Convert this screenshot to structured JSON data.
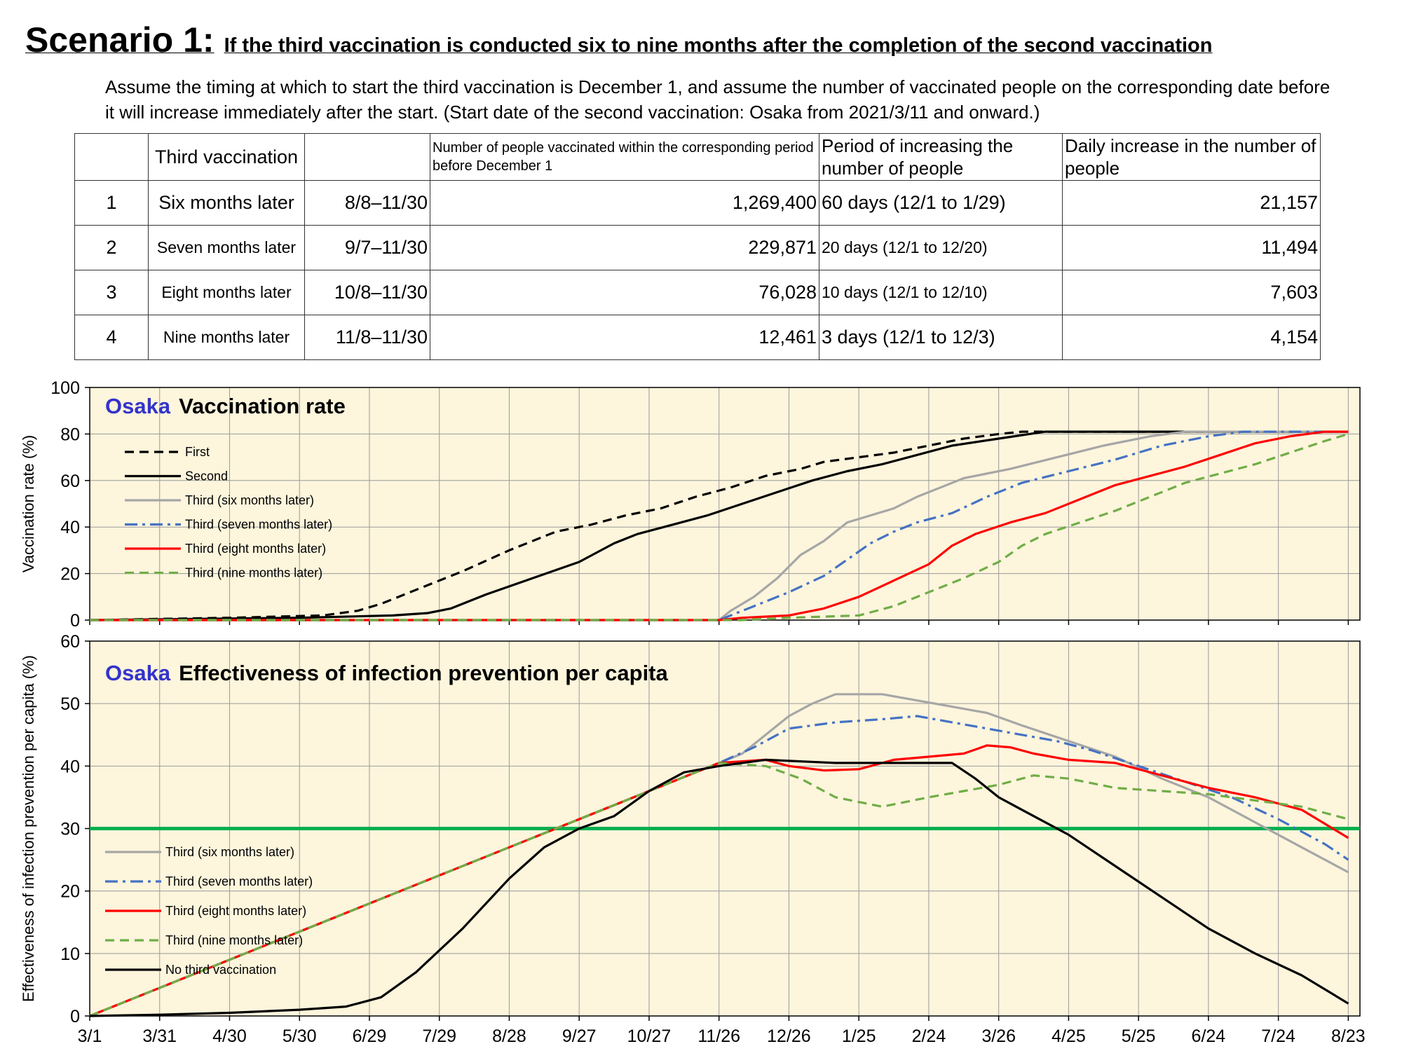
{
  "heading": {
    "scenario": "Scenario 1:",
    "subtitle": "If the third vaccination is conducted six to nine months after the completion of the second vaccination"
  },
  "intro": "Assume the timing at which to start the third vaccination is December 1, and assume the number of vaccinated people on the corresponding date before it will increase immediately after the start. (Start date of the second vaccination: Osaka from 2021/3/11 and onward.)",
  "table": {
    "headers": [
      "",
      "Third vaccination",
      "",
      "Number of people vaccinated within the corresponding period before December 1",
      "Period of increasing the number of people",
      "Daily increase in the number of people"
    ],
    "rows": [
      {
        "idx": "1",
        "third": "Six months later",
        "period": "8/8–11/30",
        "number": "1,269,400",
        "increase": "60 days (12/1 to 1/29)",
        "daily": "21,157"
      },
      {
        "idx": "2",
        "third": "Seven months later",
        "period": "9/7–11/30",
        "number": "229,871",
        "increase": "20 days (12/1 to 12/20)",
        "daily": "11,494"
      },
      {
        "idx": "3",
        "third": "Eight months later",
        "period": "10/8–11/30",
        "number": "76,028",
        "increase": "10 days (12/1 to 12/10)",
        "daily": "7,603"
      },
      {
        "idx": "4",
        "third": "Nine months later",
        "period": "11/8–11/30",
        "number": "12,461",
        "increase": "3 days (12/1 to 12/3)",
        "daily": "4,154"
      }
    ]
  },
  "colors": {
    "plot_bg": "#fdf5dc",
    "grid": "#9a9a9a",
    "first": "#000000",
    "second": "#000000",
    "six": "#a6a6a6",
    "seven": "#4472c4",
    "eight": "#ff0000",
    "nine": "#70ad47",
    "threshold": "#00b050",
    "region": "#3333cc"
  },
  "chart_data": [
    {
      "type": "line",
      "region": "Osaka",
      "title": "Vaccination rate",
      "ylabel": "Vaccination rate (%)",
      "ylim": [
        0,
        100
      ],
      "yticks": [
        0,
        20,
        40,
        60,
        80,
        100
      ],
      "xticks": [
        "3/1",
        "3/31",
        "4/30",
        "5/30",
        "6/29",
        "7/29",
        "8/28",
        "9/27",
        "10/27",
        "11/26",
        "12/26",
        "1/25",
        "2/24",
        "3/26",
        "4/25",
        "5/25",
        "6/24",
        "7/24",
        "8/23"
      ],
      "grid": true,
      "legend_position": "top-left",
      "series": [
        {
          "name": "First",
          "style": "dashed",
          "color": "#000000",
          "points": [
            [
              0,
              0
            ],
            [
              60,
              1
            ],
            [
              100,
              2
            ],
            [
              115,
              4
            ],
            [
              125,
              7
            ],
            [
              140,
              13
            ],
            [
              160,
              21
            ],
            [
              180,
              30
            ],
            [
              200,
              38
            ],
            [
              215,
              41
            ],
            [
              230,
              45
            ],
            [
              245,
              48
            ],
            [
              260,
              53
            ],
            [
              275,
              57
            ],
            [
              290,
              62
            ],
            [
              305,
              65
            ],
            [
              315,
              68
            ],
            [
              330,
              70
            ],
            [
              345,
              72
            ],
            [
              360,
              75
            ],
            [
              375,
              78
            ],
            [
              390,
              80
            ],
            [
              400,
              81
            ],
            [
              420,
              81
            ],
            [
              540,
              81
            ]
          ]
        },
        {
          "name": "Second",
          "style": "solid",
          "color": "#000000",
          "points": [
            [
              0,
              0
            ],
            [
              90,
              1
            ],
            [
              130,
              2
            ],
            [
              145,
              3
            ],
            [
              155,
              5
            ],
            [
              170,
              11
            ],
            [
              190,
              18
            ],
            [
              210,
              25
            ],
            [
              225,
              33
            ],
            [
              235,
              37
            ],
            [
              250,
              41
            ],
            [
              265,
              45
            ],
            [
              280,
              50
            ],
            [
              295,
              55
            ],
            [
              310,
              60
            ],
            [
              325,
              64
            ],
            [
              340,
              67
            ],
            [
              355,
              71
            ],
            [
              370,
              75
            ],
            [
              390,
              78
            ],
            [
              410,
              81
            ],
            [
              540,
              81
            ]
          ]
        },
        {
          "name": "Third (six months later)",
          "style": "solid",
          "color": "#a6a6a6",
          "points": [
            [
              0,
              0
            ],
            [
              270,
              0
            ],
            [
              275,
              4
            ],
            [
              285,
              10
            ],
            [
              295,
              18
            ],
            [
              305,
              28
            ],
            [
              315,
              34
            ],
            [
              325,
              42
            ],
            [
              335,
              45
            ],
            [
              345,
              48
            ],
            [
              355,
              53
            ],
            [
              365,
              57
            ],
            [
              375,
              61
            ],
            [
              395,
              65
            ],
            [
              415,
              70
            ],
            [
              435,
              75
            ],
            [
              455,
              79
            ],
            [
              470,
              81
            ],
            [
              540,
              81
            ]
          ]
        },
        {
          "name": "Third (seven months later)",
          "style": "dashdot",
          "color": "#4472c4",
          "points": [
            [
              0,
              0
            ],
            [
              270,
              0
            ],
            [
              285,
              6
            ],
            [
              300,
              12
            ],
            [
              315,
              19
            ],
            [
              325,
              26
            ],
            [
              335,
              33
            ],
            [
              345,
              38
            ],
            [
              355,
              42
            ],
            [
              370,
              46
            ],
            [
              385,
              53
            ],
            [
              400,
              59
            ],
            [
              420,
              64
            ],
            [
              440,
              69
            ],
            [
              460,
              75
            ],
            [
              480,
              79
            ],
            [
              495,
              81
            ],
            [
              540,
              81
            ]
          ]
        },
        {
          "name": "Third (eight months later)",
          "style": "solid",
          "color": "#ff0000",
          "points": [
            [
              0,
              0
            ],
            [
              270,
              0
            ],
            [
              280,
              1
            ],
            [
              300,
              2
            ],
            [
              315,
              5
            ],
            [
              330,
              10
            ],
            [
              345,
              17
            ],
            [
              360,
              24
            ],
            [
              370,
              32
            ],
            [
              380,
              37
            ],
            [
              395,
              42
            ],
            [
              410,
              46
            ],
            [
              425,
              52
            ],
            [
              440,
              58
            ],
            [
              455,
              62
            ],
            [
              470,
              66
            ],
            [
              485,
              71
            ],
            [
              500,
              76
            ],
            [
              515,
              79
            ],
            [
              530,
              81
            ],
            [
              540,
              81
            ]
          ]
        },
        {
          "name": "Third (nine months later)",
          "style": "dashed",
          "color": "#70ad47",
          "points": [
            [
              0,
              0
            ],
            [
              280,
              0
            ],
            [
              300,
              1
            ],
            [
              330,
              2
            ],
            [
              345,
              6
            ],
            [
              360,
              12
            ],
            [
              375,
              18
            ],
            [
              390,
              25
            ],
            [
              400,
              32
            ],
            [
              410,
              37
            ],
            [
              425,
              42
            ],
            [
              440,
              47
            ],
            [
              455,
              53
            ],
            [
              470,
              59
            ],
            [
              485,
              63
            ],
            [
              500,
              67
            ],
            [
              515,
              72
            ],
            [
              530,
              77
            ],
            [
              540,
              80
            ]
          ]
        }
      ]
    },
    {
      "type": "line",
      "region": "Osaka",
      "title": "Effectiveness of infection prevention per capita",
      "ylabel": "Effectiveness of infection prevention per capita (%)",
      "ylim": [
        0,
        60
      ],
      "yticks": [
        0,
        10,
        20,
        30,
        40,
        50,
        60
      ],
      "xticks": [
        "3/1",
        "3/31",
        "4/30",
        "5/30",
        "6/29",
        "7/29",
        "8/28",
        "9/27",
        "10/27",
        "11/26",
        "12/26",
        "1/25",
        "2/24",
        "3/26",
        "4/25",
        "5/25",
        "6/24",
        "7/24",
        "8/23"
      ],
      "grid": true,
      "legend_position": "bottom-left",
      "threshold": 30,
      "series": [
        {
          "name": "Third (six months later)",
          "style": "solid",
          "color": "#a6a6a6",
          "points": [
            [
              0,
              0
            ],
            [
              270,
              40.5
            ],
            [
              280,
              42
            ],
            [
              290,
              45
            ],
            [
              300,
              48
            ],
            [
              310,
              50
            ],
            [
              320,
              51.5
            ],
            [
              330,
              51.5
            ],
            [
              340,
              51.5
            ],
            [
              355,
              50.5
            ],
            [
              370,
              49.5
            ],
            [
              385,
              48.5
            ],
            [
              400,
              46.5
            ],
            [
              420,
              44
            ],
            [
              440,
              41.5
            ],
            [
              460,
              38
            ],
            [
              480,
              35
            ],
            [
              500,
              31
            ],
            [
              520,
              27
            ],
            [
              540,
              23
            ]
          ]
        },
        {
          "name": "Third (seven months later)",
          "style": "dashdot",
          "color": "#4472c4",
          "points": [
            [
              0,
              0
            ],
            [
              270,
              40.5
            ],
            [
              285,
              43
            ],
            [
              300,
              46
            ],
            [
              320,
              47
            ],
            [
              340,
              47.5
            ],
            [
              355,
              48
            ],
            [
              370,
              47
            ],
            [
              385,
              46
            ],
            [
              400,
              45
            ],
            [
              415,
              44
            ],
            [
              430,
              42.5
            ],
            [
              450,
              40
            ],
            [
              470,
              37.5
            ],
            [
              490,
              35
            ],
            [
              510,
              31.5
            ],
            [
              530,
              27.5
            ],
            [
              540,
              25
            ]
          ]
        },
        {
          "name": "Third (eight months later)",
          "style": "solid",
          "color": "#ff0000",
          "points": [
            [
              0,
              0
            ],
            [
              270,
              40.5
            ],
            [
              290,
              41
            ],
            [
              300,
              40
            ],
            [
              315,
              39.3
            ],
            [
              330,
              39.5
            ],
            [
              345,
              41
            ],
            [
              360,
              41.5
            ],
            [
              375,
              42
            ],
            [
              385,
              43.3
            ],
            [
              395,
              43
            ],
            [
              405,
              42
            ],
            [
              420,
              41
            ],
            [
              440,
              40.5
            ],
            [
              460,
              38.5
            ],
            [
              480,
              36.5
            ],
            [
              500,
              35
            ],
            [
              520,
              33
            ],
            [
              540,
              28.5
            ]
          ]
        },
        {
          "name": "Third (nine months later)",
          "style": "dashed",
          "color": "#70ad47",
          "points": [
            [
              0,
              0
            ],
            [
              270,
              40.5
            ],
            [
              290,
              40
            ],
            [
              305,
              38
            ],
            [
              320,
              35
            ],
            [
              340,
              33.5
            ],
            [
              360,
              35
            ],
            [
              375,
              36
            ],
            [
              390,
              37
            ],
            [
              405,
              38.5
            ],
            [
              420,
              38
            ],
            [
              440,
              36.5
            ],
            [
              460,
              36
            ],
            [
              480,
              35.5
            ],
            [
              500,
              34.5
            ],
            [
              520,
              33.5
            ],
            [
              540,
              31.5
            ]
          ]
        },
        {
          "name": "No third vaccination",
          "style": "solid",
          "color": "#000000",
          "points": [
            [
              0,
              0
            ],
            [
              30,
              0.2
            ],
            [
              60,
              0.5
            ],
            [
              90,
              1
            ],
            [
              110,
              1.5
            ],
            [
              125,
              3
            ],
            [
              140,
              7
            ],
            [
              160,
              14
            ],
            [
              180,
              22
            ],
            [
              195,
              27
            ],
            [
              210,
              30
            ],
            [
              225,
              32
            ],
            [
              240,
              36
            ],
            [
              255,
              39
            ],
            [
              270,
              40
            ],
            [
              290,
              41
            ],
            [
              320,
              40.5
            ],
            [
              350,
              40.5
            ],
            [
              370,
              40.5
            ],
            [
              380,
              38
            ],
            [
              390,
              35
            ],
            [
              400,
              33
            ],
            [
              420,
              29
            ],
            [
              440,
              24
            ],
            [
              460,
              19
            ],
            [
              480,
              14
            ],
            [
              500,
              10
            ],
            [
              520,
              6.5
            ],
            [
              540,
              2
            ]
          ]
        }
      ]
    }
  ]
}
